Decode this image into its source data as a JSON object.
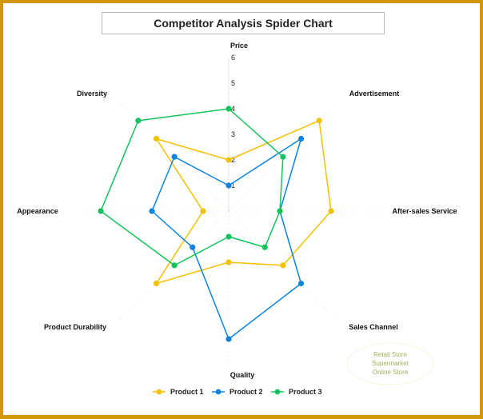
{
  "title": "Competitor Analysis Spider Chart",
  "colors": {
    "border": "#d4960a",
    "product1": "#f5c000",
    "product2": "#0a84e0",
    "product3": "#12c45a",
    "grid": "#e4e4e4"
  },
  "note": {
    "lines": [
      "Retail Store",
      "Supermarket",
      "Online Store"
    ]
  },
  "legend": {
    "items": [
      {
        "label": "Product 1",
        "color": "#f5c000"
      },
      {
        "label": "Product 2",
        "color": "#0a84e0"
      },
      {
        "label": "Product 3",
        "color": "#12c45a"
      }
    ]
  },
  "chart_data": {
    "type": "radar",
    "title": "Competitor Analysis Spider Chart",
    "categories": [
      "Price",
      "Advertisement",
      "After-sales Service",
      "Sales Channel",
      "Quality",
      "Product Durability",
      "Appearance",
      "Diversity"
    ],
    "rlim": [
      0,
      6
    ],
    "rticks": [
      1,
      2,
      3,
      4,
      5,
      6
    ],
    "series": [
      {
        "name": "Product 1",
        "color": "#f5c000",
        "values": [
          2,
          5,
          4,
          3,
          2,
          4,
          1,
          4
        ]
      },
      {
        "name": "Product 2",
        "color": "#0a84e0",
        "values": [
          1,
          4,
          2,
          4,
          5,
          2,
          3,
          3
        ]
      },
      {
        "name": "Product 3",
        "color": "#12c45a",
        "values": [
          4,
          3,
          2,
          2,
          1,
          3,
          5,
          5
        ]
      }
    ],
    "legend_position": "bottom",
    "grid": true
  }
}
